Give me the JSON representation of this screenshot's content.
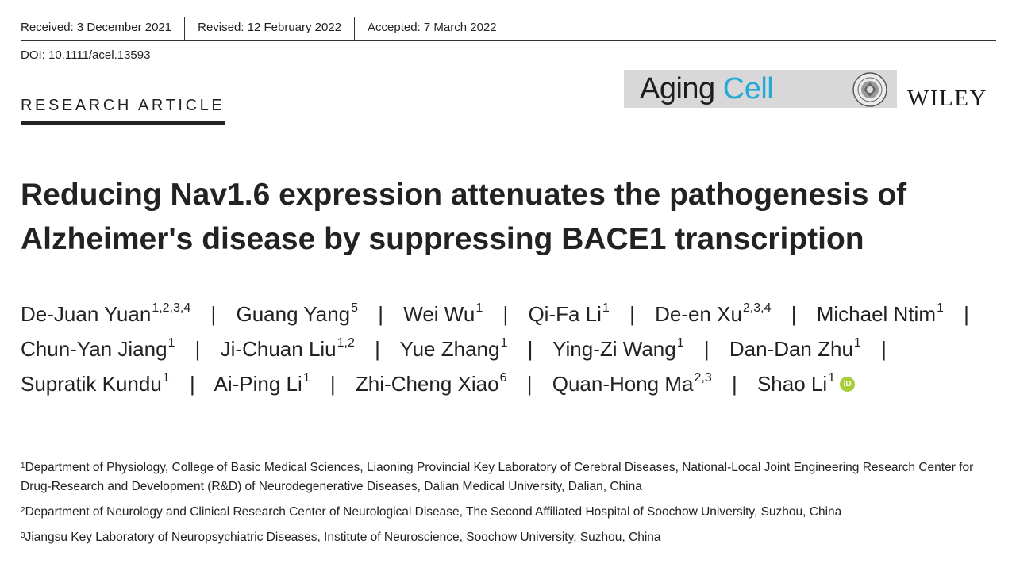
{
  "header": {
    "received": "Received: 3 December 2021",
    "revised": "Revised: 12 February 2022",
    "accepted": "Accepted: 7 March 2022",
    "doi": "DOI: 10.1111/acel.13593",
    "article_type": "RESEARCH ARTICLE"
  },
  "journal": {
    "name_part1": "Aging",
    "name_part2": "Cell",
    "publisher": "WILEY",
    "accent_color": "#27a9d6"
  },
  "title": "Reducing Nav1.6 expression attenuates the pathogenesis of Alzheimer's disease by suppressing BACE1 transcription",
  "separator": "|",
  "authors": [
    {
      "name": "De-Juan Yuan",
      "aff": "1,2,3,4"
    },
    {
      "name": "Guang Yang",
      "aff": "5"
    },
    {
      "name": "Wei Wu",
      "aff": "1"
    },
    {
      "name": "Qi-Fa Li",
      "aff": "1"
    },
    {
      "name": "De-en Xu",
      "aff": "2,3,4"
    },
    {
      "name": "Michael Ntim",
      "aff": "1"
    },
    {
      "name": "Chun-Yan Jiang",
      "aff": "1"
    },
    {
      "name": "Ji-Chuan Liu",
      "aff": "1,2"
    },
    {
      "name": "Yue Zhang",
      "aff": "1"
    },
    {
      "name": "Ying-Zi Wang",
      "aff": "1"
    },
    {
      "name": "Dan-Dan Zhu",
      "aff": "1"
    },
    {
      "name": "Supratik Kundu",
      "aff": "1"
    },
    {
      "name": "Ai-Ping Li",
      "aff": "1"
    },
    {
      "name": "Zhi-Cheng Xiao",
      "aff": "6"
    },
    {
      "name": "Quan-Hong Ma",
      "aff": "2,3"
    },
    {
      "name": "Shao Li",
      "aff": "1"
    }
  ],
  "orcid_icon": "orcid-icon",
  "orcid_label": "iD",
  "affiliations": [
    {
      "num": "1",
      "text": "Department of Physiology, College of Basic Medical Sciences, Liaoning Provincial Key Laboratory of Cerebral Diseases, National-Local Joint Engineering Research Center for Drug-Research and Development (R&D) of Neurodegenerative Diseases, Dalian Medical University, Dalian, China"
    },
    {
      "num": "2",
      "text": "Department of Neurology and Clinical Research Center of Neurological Disease, The Second Affiliated Hospital of Soochow University, Suzhou, China"
    },
    {
      "num": "3",
      "text": "Jiangsu Key Laboratory of Neuropsychiatric Diseases, Institute of Neuroscience, Soochow University, Suzhou, China"
    }
  ]
}
